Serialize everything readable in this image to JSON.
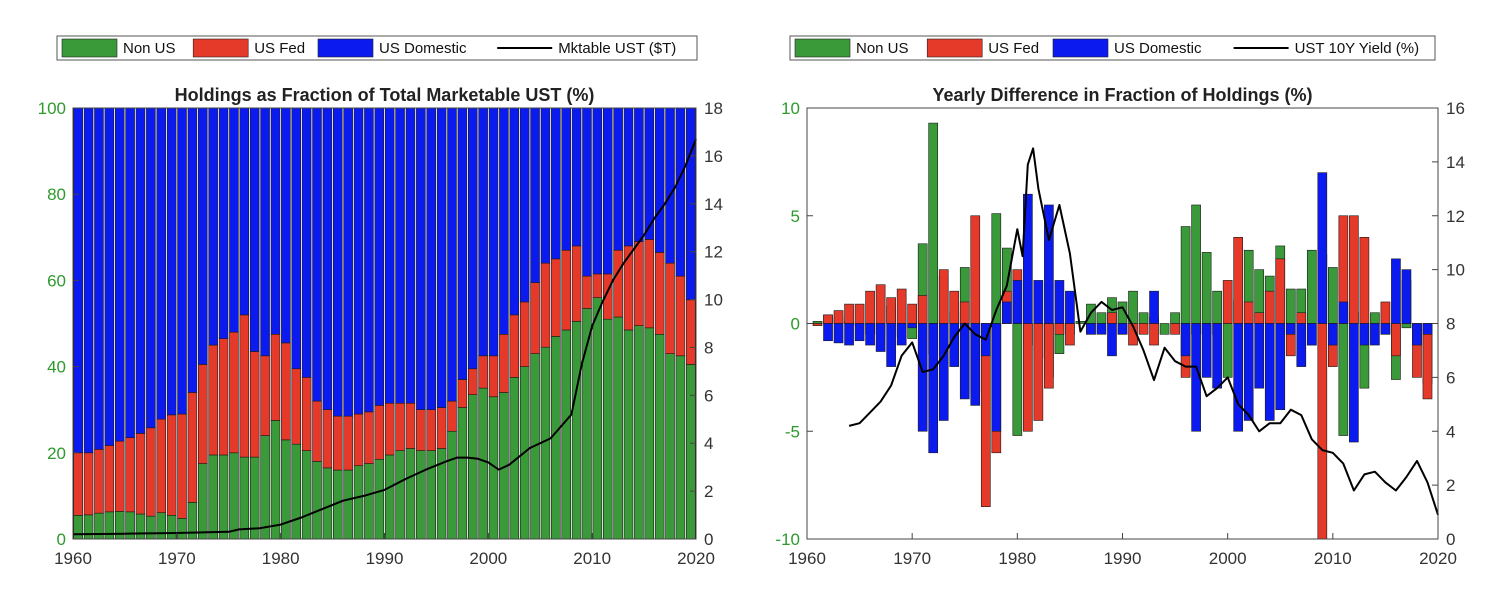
{
  "colors": {
    "non_us": "#3a9a3a",
    "us_fed": "#e5392a",
    "us_domestic": "#0b1bf0",
    "line": "#000000",
    "left_tick": "#2e9a2e"
  },
  "chart_data": [
    {
      "type": "bar",
      "stacked": true,
      "title": "Holdings as Fraction of Total Marketable UST (%)",
      "legend": [
        "Non US",
        "US Fed",
        "US Domestic",
        "Mktable UST ($T)"
      ],
      "legend_placement": "top",
      "x_range": [
        1960,
        2020
      ],
      "ylim_left": [
        0,
        100
      ],
      "ylim_right": [
        0,
        18
      ],
      "x_ticks": [
        "1960",
        "1970",
        "1980",
        "1990",
        "2000",
        "2010",
        "2020"
      ],
      "y_ticks_left": [
        "0",
        "20",
        "40",
        "60",
        "80",
        "100"
      ],
      "y_ticks_right": [
        "0",
        "2",
        "4",
        "6",
        "8",
        "10",
        "12",
        "14",
        "16",
        "18"
      ],
      "years": [
        1960,
        1961,
        1962,
        1963,
        1964,
        1965,
        1966,
        1967,
        1968,
        1969,
        1970,
        1971,
        1972,
        1973,
        1974,
        1975,
        1976,
        1977,
        1978,
        1979,
        1980,
        1981,
        1982,
        1983,
        1984,
        1985,
        1986,
        1987,
        1988,
        1989,
        1990,
        1991,
        1992,
        1993,
        1994,
        1995,
        1996,
        1997,
        1998,
        1999,
        2000,
        2001,
        2002,
        2003,
        2004,
        2005,
        2006,
        2007,
        2008,
        2009,
        2010,
        2011,
        2012,
        2013,
        2014,
        2015,
        2016,
        2017,
        2018,
        2019
      ],
      "series": [
        {
          "name": "Non US",
          "values": [
            5.5,
            5.6,
            6.0,
            6.3,
            6.4,
            6.3,
            5.8,
            5.3,
            6.1,
            5.5,
            4.8,
            8.5,
            17.5,
            19.5,
            19.5,
            20.0,
            19.0,
            19.0,
            24.0,
            27.5,
            23.0,
            22.0,
            20.5,
            18.0,
            16.5,
            16.0,
            16.0,
            17.0,
            17.5,
            18.5,
            19.5,
            20.5,
            21.0,
            20.5,
            20.5,
            21.0,
            25.0,
            30.5,
            33.5,
            35.0,
            33.0,
            34.0,
            37.5,
            40.0,
            43.0,
            44.5,
            47.0,
            48.5,
            50.5,
            53.5,
            56.0,
            51.0,
            51.5,
            48.5,
            49.5,
            49.0,
            47.5,
            43.0,
            42.5,
            40.5
          ]
        },
        {
          "name": "US Fed",
          "values": [
            14.5,
            14.4,
            14.8,
            15.4,
            16.3,
            17.2,
            18.7,
            20.5,
            21.7,
            23.3,
            24.2,
            25.5,
            23.0,
            25.5,
            27.0,
            28.0,
            33.0,
            24.5,
            18.5,
            20.0,
            22.5,
            17.5,
            17.0,
            14.0,
            13.5,
            12.5,
            12.5,
            12.0,
            12.0,
            12.5,
            12.0,
            11.0,
            10.5,
            9.5,
            9.5,
            9.5,
            7.0,
            6.5,
            6.0,
            7.5,
            9.5,
            13.5,
            14.5,
            15.0,
            16.5,
            19.5,
            18.0,
            18.5,
            17.5,
            7.5,
            5.5,
            10.5,
            15.5,
            19.5,
            19.5,
            20.5,
            19.0,
            21.0,
            18.5,
            15.0
          ]
        },
        {
          "name": "US Domestic",
          "values": [
            80.0,
            80.0,
            79.2,
            78.3,
            77.3,
            76.5,
            75.5,
            74.2,
            72.2,
            71.2,
            71.0,
            66.0,
            59.5,
            55.0,
            53.5,
            52.0,
            48.0,
            56.5,
            57.5,
            52.5,
            54.5,
            60.5,
            62.5,
            68.0,
            70.0,
            71.5,
            71.5,
            71.0,
            70.5,
            69.0,
            68.5,
            68.5,
            68.5,
            70.0,
            70.0,
            69.5,
            68.0,
            63.0,
            60.5,
            57.5,
            57.5,
            52.5,
            48.0,
            45.0,
            40.5,
            36.0,
            35.0,
            33.0,
            32.0,
            39.0,
            38.5,
            38.5,
            33.0,
            32.0,
            31.0,
            30.5,
            33.5,
            36.0,
            39.0,
            44.5
          ]
        }
      ],
      "line": {
        "name": "Mktable UST ($T)",
        "axis": "right",
        "x": [
          1960,
          1965,
          1970,
          1973,
          1975,
          1976,
          1978,
          1980,
          1982,
          1984,
          1986,
          1988,
          1990,
          1992,
          1994,
          1996,
          1997,
          1998,
          1999,
          2000,
          2001,
          2002,
          2004,
          2006,
          2008,
          2009,
          2010,
          2011,
          2012,
          2013,
          2014,
          2015,
          2016,
          2017,
          2018,
          2019,
          2020
        ],
        "y": [
          0.2,
          0.22,
          0.25,
          0.28,
          0.3,
          0.4,
          0.45,
          0.6,
          0.9,
          1.25,
          1.6,
          1.8,
          2.05,
          2.5,
          2.9,
          3.25,
          3.4,
          3.4,
          3.35,
          3.2,
          2.9,
          3.1,
          3.8,
          4.2,
          5.2,
          7.3,
          8.9,
          9.9,
          10.8,
          11.5,
          12.1,
          12.7,
          13.4,
          14.0,
          14.7,
          15.6,
          16.7
        ]
      }
    },
    {
      "type": "bar",
      "title": "Yearly Difference in Fraction of Holdings (%)",
      "legend": [
        "Non US",
        "US Fed",
        "US Domestic",
        "UST 10Y Yield (%)"
      ],
      "legend_placement": "top",
      "x_range": [
        1960,
        2020
      ],
      "ylim_left": [
        -10,
        10
      ],
      "ylim_right": [
        0,
        16
      ],
      "x_ticks": [
        "1960",
        "1970",
        "1980",
        "1990",
        "2000",
        "2010",
        "2020"
      ],
      "y_ticks_left": [
        "-10",
        "-5",
        "0",
        "5",
        "10"
      ],
      "y_ticks_right": [
        "0",
        "2",
        "4",
        "6",
        "8",
        "10",
        "12",
        "14",
        "16"
      ],
      "years": [
        1961,
        1962,
        1963,
        1964,
        1965,
        1966,
        1967,
        1968,
        1969,
        1970,
        1971,
        1972,
        1973,
        1974,
        1975,
        1976,
        1977,
        1978,
        1979,
        1980,
        1981,
        1982,
        1983,
        1984,
        1985,
        1986,
        1987,
        1988,
        1989,
        1990,
        1991,
        1992,
        1993,
        1994,
        1995,
        1996,
        1997,
        1998,
        1999,
        2000,
        2001,
        2002,
        2003,
        2004,
        2005,
        2006,
        2007,
        2008,
        2009,
        2010,
        2011,
        2012,
        2013,
        2014,
        2015,
        2016,
        2017,
        2018,
        2019
      ],
      "series": [
        {
          "name": "Non US",
          "values": [
            0.1,
            0.4,
            0.3,
            0.1,
            -0.1,
            -0.5,
            -0.5,
            0.8,
            -0.6,
            -0.7,
            3.7,
            9.3,
            2.2,
            0.5,
            2.6,
            -3.2,
            -0.4,
            5.1,
            3.5,
            -5.2,
            -1.0,
            -1.6,
            -2.5,
            -1.4,
            -0.5,
            0.1,
            0.9,
            0.5,
            1.2,
            1.0,
            1.5,
            0.5,
            0.3,
            -0.5,
            0.5,
            4.5,
            5.5,
            3.3,
            1.5,
            -2.5,
            1.1,
            3.4,
            2.5,
            2.2,
            3.6,
            1.6,
            1.6,
            3.4,
            3.2,
            2.6,
            -5.2,
            0.5,
            -3.0,
            0.5,
            -0.5,
            -2.6,
            -0.2,
            -1.0,
            -2.8
          ]
        },
        {
          "name": "US Fed",
          "values": [
            -0.1,
            0.4,
            0.6,
            0.9,
            0.9,
            1.5,
            1.8,
            1.2,
            1.6,
            0.9,
            1.3,
            -1.4,
            2.5,
            1.5,
            1.0,
            5.0,
            -8.5,
            -6.0,
            1.5,
            2.5,
            -5.0,
            -4.5,
            -3.0,
            -0.5,
            -1.0,
            0,
            -0.5,
            0,
            0.5,
            -0.5,
            -1.0,
            -0.5,
            -1.0,
            0,
            -0.5,
            -2.5,
            -0.5,
            -0.5,
            -0.5,
            2.0,
            4.0,
            1.0,
            0.5,
            1.5,
            3.0,
            -1.5,
            0.5,
            -1.0,
            -10.0,
            -2.0,
            5.0,
            5.0,
            4.0,
            0,
            1.0,
            -1.5,
            2.0,
            -2.5,
            -3.5
          ]
        },
        {
          "name": "US Domestic",
          "values": [
            0,
            -0.8,
            -0.9,
            -1.0,
            -0.8,
            -1.0,
            -1.3,
            -2.0,
            -1.0,
            -0.2,
            -5.0,
            -6.0,
            -4.5,
            -2.0,
            -3.5,
            -3.8,
            -1.5,
            -5.0,
            1.0,
            2.0,
            6.0,
            2.0,
            5.5,
            2.0,
            1.5,
            0,
            -0.5,
            -0.5,
            -1.5,
            -0.5,
            0,
            0,
            1.5,
            0,
            0,
            -1.5,
            -5.0,
            -2.5,
            -3.0,
            0,
            -5.0,
            -4.5,
            -3.0,
            -4.5,
            -4.0,
            -0.5,
            -2.0,
            -1.0,
            7.0,
            -1.0,
            1.0,
            -5.5,
            -1.0,
            -1.0,
            -0.5,
            3.0,
            2.5,
            -1.0,
            -0.5
          ]
        }
      ],
      "line": {
        "name": "UST 10Y Yield (%)",
        "axis": "right",
        "x": [
          1964,
          1965,
          1966,
          1967,
          1968,
          1969,
          1970,
          1971,
          1972,
          1973,
          1974,
          1975,
          1976,
          1977,
          1978,
          1979,
          1980,
          1980.5,
          1981,
          1981.5,
          1982,
          1983,
          1984,
          1985,
          1986,
          1987,
          1988,
          1989,
          1990,
          1991,
          1992,
          1993,
          1994,
          1995,
          1996,
          1997,
          1998,
          1999,
          2000,
          2001,
          2002,
          2003,
          2004,
          2005,
          2006,
          2007,
          2008,
          2009,
          2010,
          2011,
          2012,
          2013,
          2014,
          2015,
          2016,
          2017,
          2018,
          2019,
          2020
        ],
        "y": [
          4.2,
          4.3,
          4.7,
          5.1,
          5.7,
          6.8,
          7.3,
          6.2,
          6.3,
          6.8,
          7.5,
          8.0,
          7.6,
          7.4,
          8.5,
          9.4,
          11.5,
          10.5,
          13.9,
          14.5,
          13.0,
          11.1,
          12.4,
          10.6,
          7.7,
          8.4,
          8.8,
          8.5,
          8.6,
          7.9,
          7.0,
          5.9,
          7.1,
          6.6,
          6.4,
          6.4,
          5.3,
          5.6,
          6.0,
          5.0,
          4.6,
          4.0,
          4.3,
          4.3,
          4.8,
          4.6,
          3.7,
          3.3,
          3.2,
          2.8,
          1.8,
          2.4,
          2.5,
          2.1,
          1.8,
          2.3,
          2.9,
          2.1,
          0.9
        ]
      }
    }
  ]
}
